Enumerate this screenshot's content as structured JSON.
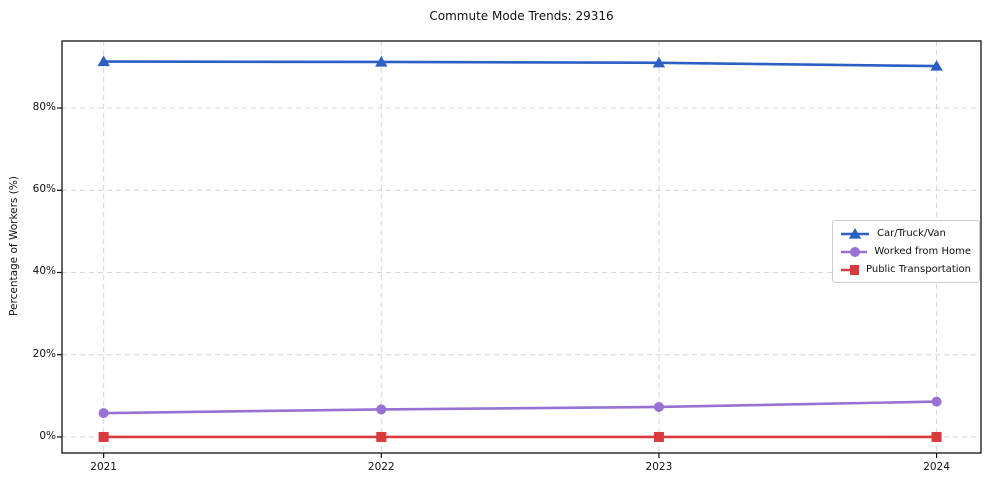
{
  "chart_data": {
    "type": "line",
    "title": "Commute Mode Trends: 29316",
    "xlabel": "",
    "ylabel": "Percentage of Workers (%)",
    "x": [
      2021,
      2022,
      2023,
      2024
    ],
    "x_tick_labels": [
      "2021",
      "2022",
      "2023",
      "2024"
    ],
    "y_ticks": [
      0,
      20,
      40,
      60,
      80
    ],
    "y_tick_labels": [
      "0%",
      "20%",
      "40%",
      "60%",
      "80%"
    ],
    "xlim": [
      2020.85,
      2024.16
    ],
    "ylim": [
      -3.9,
      96.3
    ],
    "grid": true,
    "grid_style": "dashed",
    "legend_position": "center-right",
    "series": [
      {
        "name": "Car/Truck/Van",
        "values": [
          91.3,
          91.2,
          91.0,
          90.2
        ],
        "color": "#2b5fc4",
        "marker": "triangle-up"
      },
      {
        "name": "Worked from Home",
        "values": [
          5.8,
          6.7,
          7.3,
          8.6
        ],
        "color": "#9771d3",
        "marker": "circle"
      },
      {
        "name": "Public Transportation",
        "values": [
          0.0,
          0.0,
          0.0,
          0.0
        ],
        "color": "#d93a3e",
        "marker": "square"
      }
    ],
    "colors": {
      "background": "#ffffff",
      "gridline": "#d4d4d4",
      "spine": "#111111",
      "text": "#111111",
      "legend_border": "#cccccc"
    }
  }
}
